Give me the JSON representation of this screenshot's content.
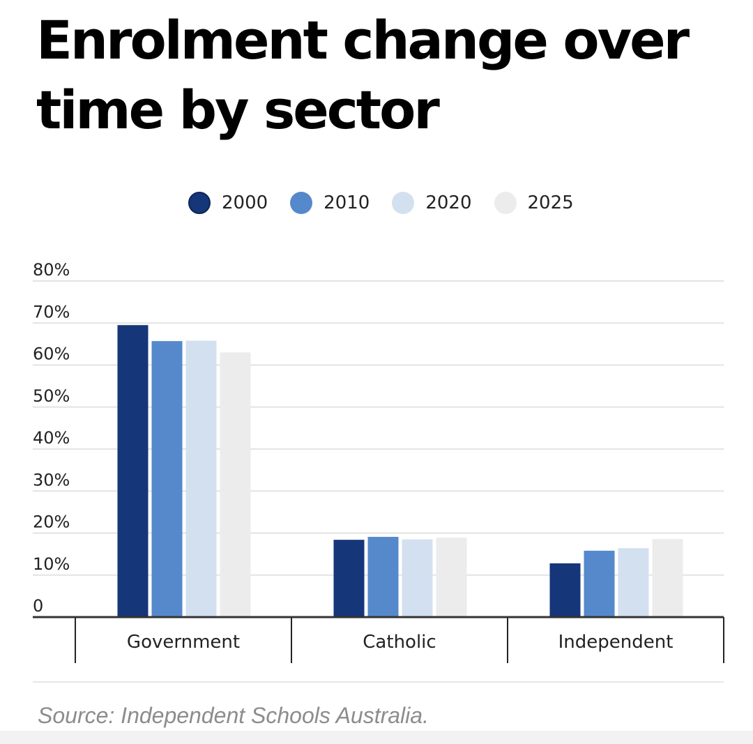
{
  "chart_data": {
    "type": "bar",
    "title": "Enrolment change over time by sector",
    "categories": [
      "Government",
      "Catholic",
      "Independent"
    ],
    "series": [
      {
        "name": "2000",
        "color": "#16367a",
        "values": [
          69.5,
          18.4,
          12.8
        ]
      },
      {
        "name": "2010",
        "color": "#5589cc",
        "values": [
          65.7,
          19.1,
          15.8
        ]
      },
      {
        "name": "2020",
        "color": "#d3e0f0",
        "values": [
          65.8,
          18.5,
          16.4
        ]
      },
      {
        "name": "2025",
        "color": "#ececec",
        "values": [
          63.0,
          18.9,
          18.6
        ]
      }
    ],
    "y_ticks": [
      "0",
      "10%",
      "20%",
      "30%",
      "40%",
      "50%",
      "60%",
      "70%",
      "80%"
    ],
    "ylim": [
      0,
      80
    ],
    "grid": true,
    "legend_position": "top"
  },
  "source": "Source: Independent Schools Australia."
}
